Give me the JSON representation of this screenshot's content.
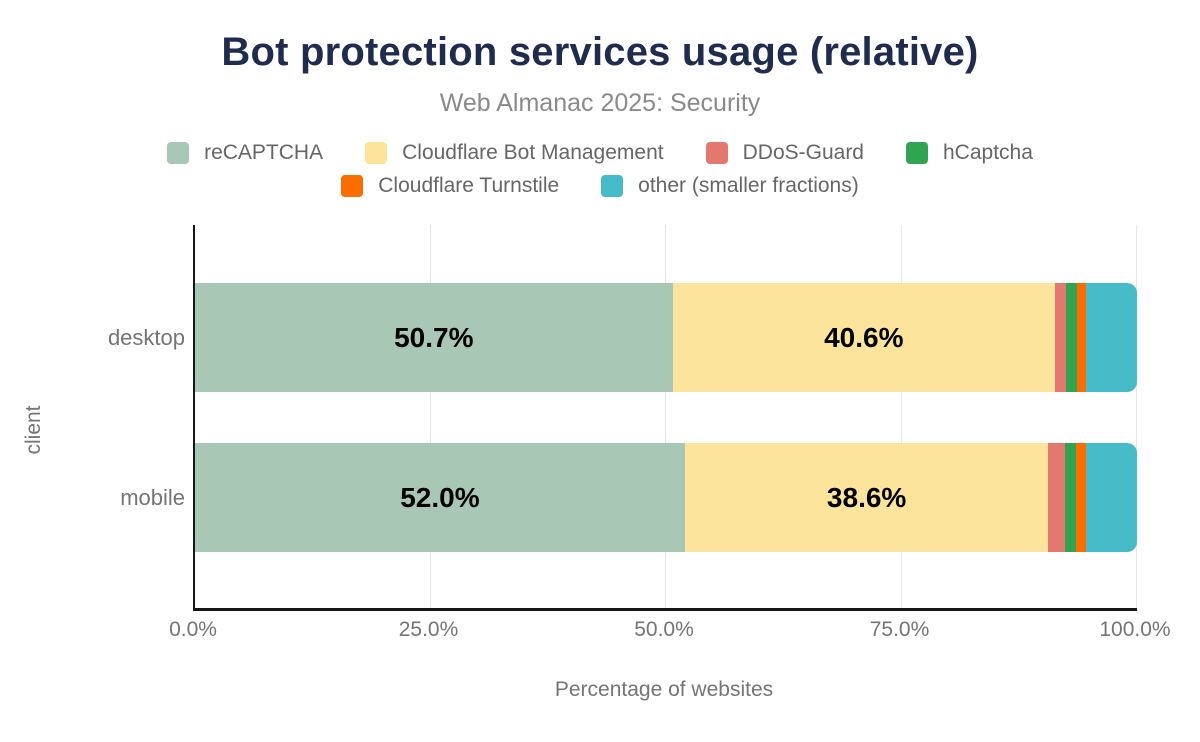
{
  "header": {
    "title": "Bot protection services usage (relative)",
    "subtitle": "Web Almanac 2025: Security"
  },
  "legend": {
    "wrap_after": 4
  },
  "colors": {
    "title": "#1f2c4d",
    "axis_line": "#161616",
    "gridline": "#e8e8e8",
    "muted_text": "#757575",
    "legend_text": "#666666",
    "bar_label": "#000000"
  },
  "chart_data": {
    "type": "bar",
    "stacked": true,
    "orientation": "horizontal",
    "title": "Bot protection services usage (relative)",
    "subtitle": "Web Almanac 2025: Security",
    "categories": [
      "desktop",
      "mobile"
    ],
    "series": [
      {
        "name": "reCAPTCHA",
        "color": "#a8c8b5",
        "values": [
          50.7,
          52.0
        ],
        "labels": [
          "50.7%",
          "52.0%"
        ]
      },
      {
        "name": "Cloudflare Bot Management",
        "color": "#fde49c",
        "values": [
          40.6,
          38.6
        ],
        "labels": [
          "40.6%",
          "38.6%"
        ]
      },
      {
        "name": "DDoS-Guard",
        "color": "#e2786e",
        "values": [
          1.2,
          1.8
        ],
        "labels": [
          null,
          null
        ]
      },
      {
        "name": "hCaptcha",
        "color": "#31a452",
        "values": [
          1.1,
          1.1
        ],
        "labels": [
          null,
          null
        ]
      },
      {
        "name": "Cloudflare Turnstile",
        "color": "#fb6d00",
        "values": [
          1.0,
          1.1
        ],
        "labels": [
          null,
          null
        ]
      },
      {
        "name": "other (smaller fractions)",
        "color": "#47bbc7",
        "values": [
          5.4,
          5.4
        ],
        "labels": [
          null,
          null
        ]
      }
    ],
    "xlabel": "Percentage of websites",
    "ylabel": "client",
    "x_ticks": [
      {
        "label": "0.0%",
        "value": 0
      },
      {
        "label": "25.0%",
        "value": 25
      },
      {
        "label": "50.0%",
        "value": 50
      },
      {
        "label": "75.0%",
        "value": 75
      },
      {
        "label": "100.0%",
        "value": 100
      }
    ],
    "xlim": [
      0,
      100
    ],
    "grid": "vertical",
    "legend_position": "top"
  }
}
